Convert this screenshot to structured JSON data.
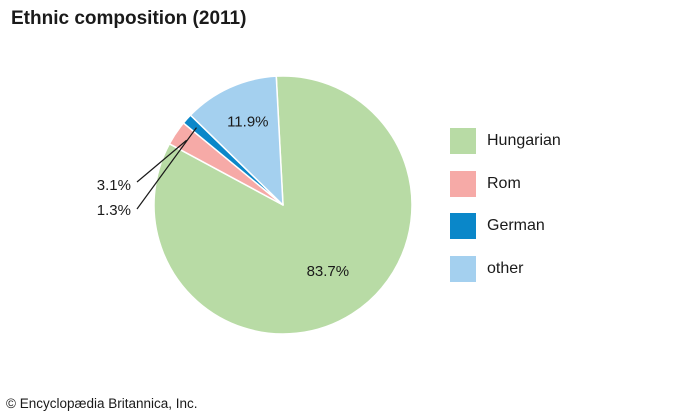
{
  "chart_data": {
    "type": "pie",
    "title": "Ethnic composition (2011)",
    "slices": [
      {
        "label": "Hungarian",
        "value": 83.7,
        "value_label": "83.7%",
        "color": "#b8dba5"
      },
      {
        "label": "Rom",
        "value": 3.1,
        "value_label": "3.1%",
        "color": "#f6aaa7"
      },
      {
        "label": "German",
        "value": 1.3,
        "value_label": "1.3%",
        "color": "#0a87c9"
      },
      {
        "label": "other",
        "value": 11.9,
        "value_label": "11.9%",
        "color": "#a4d0ef"
      }
    ],
    "legend_position": "right"
  },
  "footer": {
    "copyright": "© Encyclopædia Britannica, Inc."
  }
}
